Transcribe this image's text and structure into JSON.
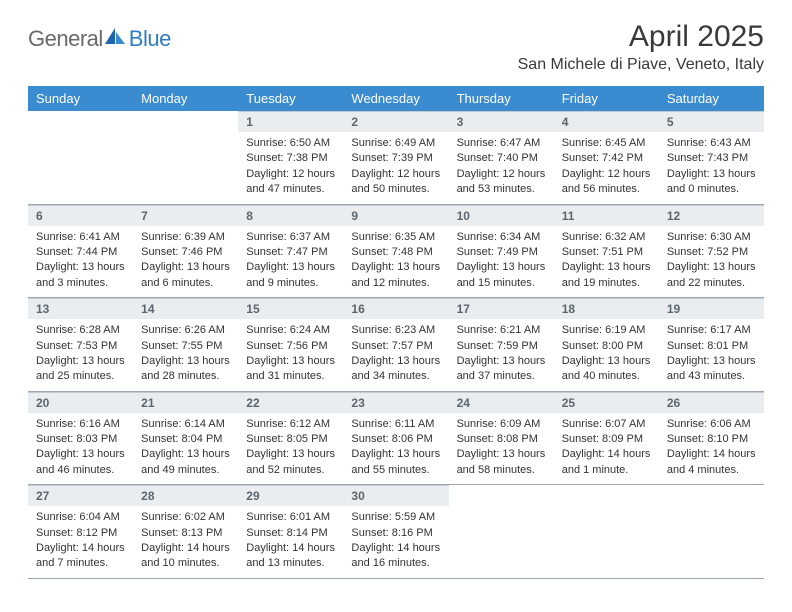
{
  "logo": {
    "text1": "General",
    "text2": "Blue"
  },
  "header": {
    "title": "April 2025",
    "location": "San Michele di Piave, Veneto, Italy"
  },
  "colors": {
    "header_bg": "#3b8bd1",
    "header_fg": "#ffffff",
    "daynum_bg": "#e9edef",
    "daynum_fg": "#5c666e",
    "border": "#9aa7b3",
    "logo_gray": "#6a6a6a",
    "logo_blue": "#2f7dc4"
  },
  "columns": [
    "Sunday",
    "Monday",
    "Tuesday",
    "Wednesday",
    "Thursday",
    "Friday",
    "Saturday"
  ],
  "weeks": [
    [
      null,
      null,
      {
        "n": "1",
        "sunrise": "Sunrise: 6:50 AM",
        "sunset": "Sunset: 7:38 PM",
        "daylight1": "Daylight: 12 hours",
        "daylight2": "and 47 minutes."
      },
      {
        "n": "2",
        "sunrise": "Sunrise: 6:49 AM",
        "sunset": "Sunset: 7:39 PM",
        "daylight1": "Daylight: 12 hours",
        "daylight2": "and 50 minutes."
      },
      {
        "n": "3",
        "sunrise": "Sunrise: 6:47 AM",
        "sunset": "Sunset: 7:40 PM",
        "daylight1": "Daylight: 12 hours",
        "daylight2": "and 53 minutes."
      },
      {
        "n": "4",
        "sunrise": "Sunrise: 6:45 AM",
        "sunset": "Sunset: 7:42 PM",
        "daylight1": "Daylight: 12 hours",
        "daylight2": "and 56 minutes."
      },
      {
        "n": "5",
        "sunrise": "Sunrise: 6:43 AM",
        "sunset": "Sunset: 7:43 PM",
        "daylight1": "Daylight: 13 hours",
        "daylight2": "and 0 minutes."
      }
    ],
    [
      {
        "n": "6",
        "sunrise": "Sunrise: 6:41 AM",
        "sunset": "Sunset: 7:44 PM",
        "daylight1": "Daylight: 13 hours",
        "daylight2": "and 3 minutes."
      },
      {
        "n": "7",
        "sunrise": "Sunrise: 6:39 AM",
        "sunset": "Sunset: 7:46 PM",
        "daylight1": "Daylight: 13 hours",
        "daylight2": "and 6 minutes."
      },
      {
        "n": "8",
        "sunrise": "Sunrise: 6:37 AM",
        "sunset": "Sunset: 7:47 PM",
        "daylight1": "Daylight: 13 hours",
        "daylight2": "and 9 minutes."
      },
      {
        "n": "9",
        "sunrise": "Sunrise: 6:35 AM",
        "sunset": "Sunset: 7:48 PM",
        "daylight1": "Daylight: 13 hours",
        "daylight2": "and 12 minutes."
      },
      {
        "n": "10",
        "sunrise": "Sunrise: 6:34 AM",
        "sunset": "Sunset: 7:49 PM",
        "daylight1": "Daylight: 13 hours",
        "daylight2": "and 15 minutes."
      },
      {
        "n": "11",
        "sunrise": "Sunrise: 6:32 AM",
        "sunset": "Sunset: 7:51 PM",
        "daylight1": "Daylight: 13 hours",
        "daylight2": "and 19 minutes."
      },
      {
        "n": "12",
        "sunrise": "Sunrise: 6:30 AM",
        "sunset": "Sunset: 7:52 PM",
        "daylight1": "Daylight: 13 hours",
        "daylight2": "and 22 minutes."
      }
    ],
    [
      {
        "n": "13",
        "sunrise": "Sunrise: 6:28 AM",
        "sunset": "Sunset: 7:53 PM",
        "daylight1": "Daylight: 13 hours",
        "daylight2": "and 25 minutes."
      },
      {
        "n": "14",
        "sunrise": "Sunrise: 6:26 AM",
        "sunset": "Sunset: 7:55 PM",
        "daylight1": "Daylight: 13 hours",
        "daylight2": "and 28 minutes."
      },
      {
        "n": "15",
        "sunrise": "Sunrise: 6:24 AM",
        "sunset": "Sunset: 7:56 PM",
        "daylight1": "Daylight: 13 hours",
        "daylight2": "and 31 minutes."
      },
      {
        "n": "16",
        "sunrise": "Sunrise: 6:23 AM",
        "sunset": "Sunset: 7:57 PM",
        "daylight1": "Daylight: 13 hours",
        "daylight2": "and 34 minutes."
      },
      {
        "n": "17",
        "sunrise": "Sunrise: 6:21 AM",
        "sunset": "Sunset: 7:59 PM",
        "daylight1": "Daylight: 13 hours",
        "daylight2": "and 37 minutes."
      },
      {
        "n": "18",
        "sunrise": "Sunrise: 6:19 AM",
        "sunset": "Sunset: 8:00 PM",
        "daylight1": "Daylight: 13 hours",
        "daylight2": "and 40 minutes."
      },
      {
        "n": "19",
        "sunrise": "Sunrise: 6:17 AM",
        "sunset": "Sunset: 8:01 PM",
        "daylight1": "Daylight: 13 hours",
        "daylight2": "and 43 minutes."
      }
    ],
    [
      {
        "n": "20",
        "sunrise": "Sunrise: 6:16 AM",
        "sunset": "Sunset: 8:03 PM",
        "daylight1": "Daylight: 13 hours",
        "daylight2": "and 46 minutes."
      },
      {
        "n": "21",
        "sunrise": "Sunrise: 6:14 AM",
        "sunset": "Sunset: 8:04 PM",
        "daylight1": "Daylight: 13 hours",
        "daylight2": "and 49 minutes."
      },
      {
        "n": "22",
        "sunrise": "Sunrise: 6:12 AM",
        "sunset": "Sunset: 8:05 PM",
        "daylight1": "Daylight: 13 hours",
        "daylight2": "and 52 minutes."
      },
      {
        "n": "23",
        "sunrise": "Sunrise: 6:11 AM",
        "sunset": "Sunset: 8:06 PM",
        "daylight1": "Daylight: 13 hours",
        "daylight2": "and 55 minutes."
      },
      {
        "n": "24",
        "sunrise": "Sunrise: 6:09 AM",
        "sunset": "Sunset: 8:08 PM",
        "daylight1": "Daylight: 13 hours",
        "daylight2": "and 58 minutes."
      },
      {
        "n": "25",
        "sunrise": "Sunrise: 6:07 AM",
        "sunset": "Sunset: 8:09 PM",
        "daylight1": "Daylight: 14 hours",
        "daylight2": "and 1 minute."
      },
      {
        "n": "26",
        "sunrise": "Sunrise: 6:06 AM",
        "sunset": "Sunset: 8:10 PM",
        "daylight1": "Daylight: 14 hours",
        "daylight2": "and 4 minutes."
      }
    ],
    [
      {
        "n": "27",
        "sunrise": "Sunrise: 6:04 AM",
        "sunset": "Sunset: 8:12 PM",
        "daylight1": "Daylight: 14 hours",
        "daylight2": "and 7 minutes."
      },
      {
        "n": "28",
        "sunrise": "Sunrise: 6:02 AM",
        "sunset": "Sunset: 8:13 PM",
        "daylight1": "Daylight: 14 hours",
        "daylight2": "and 10 minutes."
      },
      {
        "n": "29",
        "sunrise": "Sunrise: 6:01 AM",
        "sunset": "Sunset: 8:14 PM",
        "daylight1": "Daylight: 14 hours",
        "daylight2": "and 13 minutes."
      },
      {
        "n": "30",
        "sunrise": "Sunrise: 5:59 AM",
        "sunset": "Sunset: 8:16 PM",
        "daylight1": "Daylight: 14 hours",
        "daylight2": "and 16 minutes."
      },
      null,
      null,
      null
    ]
  ]
}
